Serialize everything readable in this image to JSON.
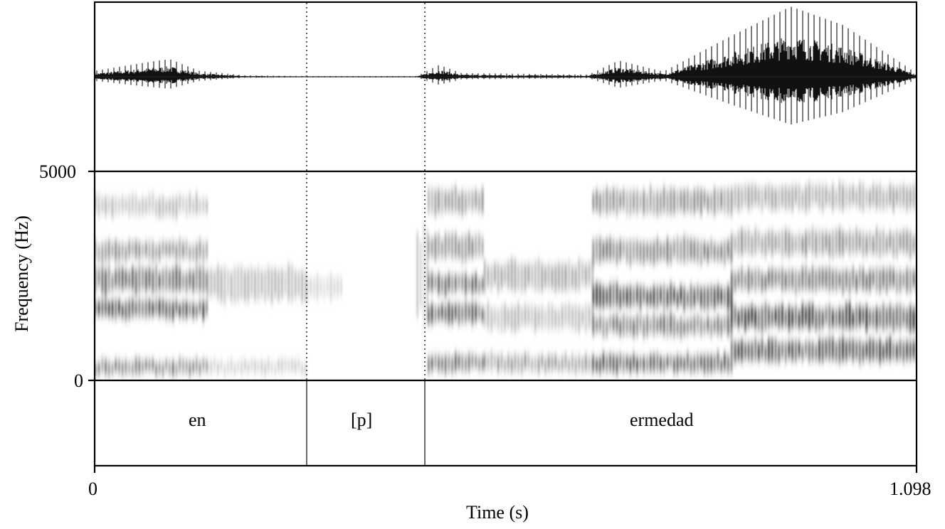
{
  "chart_data": {
    "type": "spectrogram",
    "title": "",
    "panels": [
      "waveform",
      "spectrogram",
      "textgrid"
    ],
    "xlabel": "Time (s)",
    "ylabel": "Frequency (Hz)",
    "xlim": [
      0,
      1.098
    ],
    "ylim": [
      0,
      5000
    ],
    "x_ticks": [
      "0",
      "1.098"
    ],
    "y_ticks": [
      "5000",
      "0"
    ],
    "boundaries_s": [
      0.283,
      0.441
    ],
    "intervals": [
      {
        "label": "en",
        "start": 0,
        "end": 0.283
      },
      {
        "label": "[p]",
        "start": 0.283,
        "end": 0.441
      },
      {
        "label": "ermedad",
        "start": 0.441,
        "end": 1.098
      }
    ],
    "waveform_envelope": [
      {
        "t": 0.0,
        "amp": 0.08
      },
      {
        "t": 0.06,
        "amp": 0.18
      },
      {
        "t": 0.1,
        "amp": 0.24
      },
      {
        "t": 0.14,
        "amp": 0.08
      },
      {
        "t": 0.2,
        "amp": 0.02
      },
      {
        "t": 0.283,
        "amp": 0.01
      },
      {
        "t": 0.43,
        "amp": 0.01
      },
      {
        "t": 0.46,
        "amp": 0.16
      },
      {
        "t": 0.49,
        "amp": 0.05
      },
      {
        "t": 0.66,
        "amp": 0.03
      },
      {
        "t": 0.7,
        "amp": 0.22
      },
      {
        "t": 0.76,
        "amp": 0.07
      },
      {
        "t": 0.85,
        "amp": 0.55
      },
      {
        "t": 0.93,
        "amp": 0.95
      },
      {
        "t": 1.0,
        "amp": 0.7
      },
      {
        "t": 1.098,
        "amp": 0.05
      }
    ]
  },
  "axes": {
    "x_tick_start": "0",
    "x_tick_end": "1.098",
    "y_tick_top": "5000",
    "y_tick_bottom": "0",
    "xlabel": "Time (s)",
    "ylabel": "Frequency (Hz)"
  },
  "tier": {
    "labels": [
      "en",
      "[p]",
      "ermedad"
    ]
  }
}
